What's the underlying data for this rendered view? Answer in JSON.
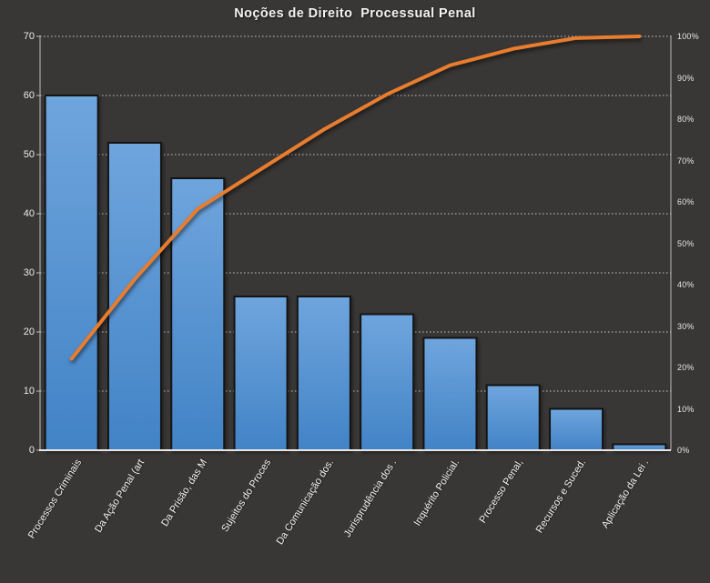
{
  "window": {
    "background_color": "#393736"
  },
  "title": "Noções de Direito  Processual Penal",
  "colors": {
    "title_text": "#f3f2f1",
    "axis_text": "#eceae8",
    "gridline": "#c8c6c4",
    "axis_line": "#bfbdbb",
    "baseline": "#e8e6e4",
    "bar_fill_top": "#6fa5dd",
    "bar_fill_bottom": "#4283c6",
    "bar_border": "#141414",
    "cumulative_line": "#e87d2e"
  },
  "chart_data": {
    "type": "bar",
    "subtype": "pareto",
    "title": "Noções de Direito  Processual Penal",
    "categories": [
      "Processos Criminais",
      "Da Ação Penal (art",
      "Da Prisão, das M",
      "Sujeitos do Proces",
      "Da Comunicação dos.",
      "Jurisprudência dos .",
      "Inquérito Policial.",
      "Processo Penal,",
      "Recursos e Suced.",
      "Aplicação da Lei ."
    ],
    "bar_values": [
      60,
      52,
      46,
      26,
      26,
      23,
      19,
      11,
      7,
      1
    ],
    "cumulative_pct": [
      22.1,
      41.3,
      58.3,
      67.9,
      77.5,
      86.0,
      93.0,
      97.0,
      99.6,
      100.0
    ],
    "left_axis": {
      "min": 0,
      "max": 70,
      "step": 10,
      "ticks": [
        "0",
        "10",
        "20",
        "30",
        "40",
        "50",
        "60",
        "70"
      ]
    },
    "right_axis": {
      "min_label": "0%",
      "max_label": "100%",
      "ticks": [
        "0%",
        "10%",
        "20%",
        "30%",
        "40%",
        "50%",
        "60%",
        "70%",
        "80%",
        "90%",
        "100%"
      ]
    },
    "grid": "horizontal dotted lines at left-axis ticks",
    "legend": "none",
    "xlabel": "",
    "ylabel": ""
  }
}
